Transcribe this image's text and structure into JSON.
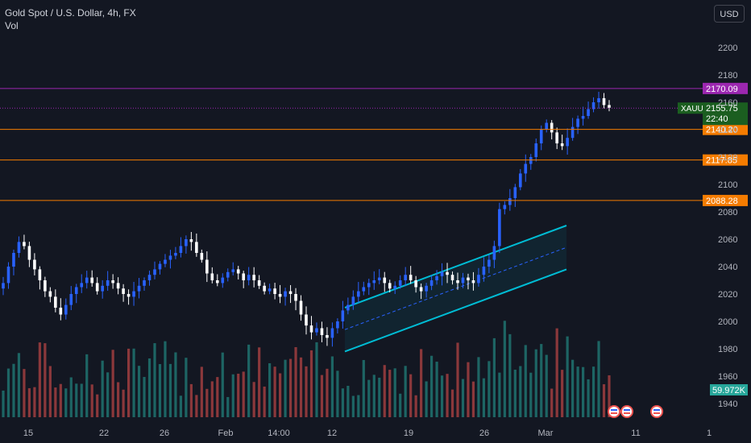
{
  "header": {
    "title": "Gold Spot / U.S. Dollar, 4h, FX",
    "volume_label": "Vol",
    "currency_button": "USD"
  },
  "colors": {
    "background": "#131722",
    "up": "#2962ff",
    "down": "#ffffff",
    "vol_up": "#26a69a",
    "vol_down": "#ef5350",
    "channel": "#00bcd4",
    "resistance_purple": "#9c27b0",
    "level_orange": "#f57c00",
    "price_green": "#1b5e20"
  },
  "chart_data": {
    "type": "candlestick",
    "title": "Gold Spot / U.S. Dollar, 4h, FX",
    "symbol": "XAUUSD",
    "ylim": [
      1935,
      2215
    ],
    "y_ticks": [
      1940,
      1960,
      1980,
      2000,
      2020,
      2040,
      2060,
      2080,
      2100,
      2120,
      2140,
      2160,
      2180,
      2200
    ],
    "x_ticks": [
      "15",
      "22",
      "26",
      "Feb",
      "14:00",
      "12",
      "19",
      "26",
      "Mar",
      "11",
      "1"
    ],
    "horizontal_levels": [
      {
        "value": 2170.09,
        "label": "2170.09",
        "color": "#9c27b0"
      },
      {
        "value": 2155.32,
        "label": "2155.32",
        "color": "#9c27b0"
      },
      {
        "value": 2140.2,
        "label": "2140.20",
        "color": "#f57c00"
      },
      {
        "value": 2117.85,
        "label": "2117.85",
        "color": "#f57c00"
      },
      {
        "value": 2088.28,
        "label": "2088.28",
        "color": "#f57c00"
      }
    ],
    "last_price": {
      "symbol": "XAUUSD",
      "value": "2155.75",
      "countdown": "22:40"
    },
    "volume_last": "59.972K",
    "channel": {
      "upper": [
        {
          "x": "Feb 12",
          "y": 2010
        },
        {
          "x": "Mar 5",
          "y": 2070
        }
      ],
      "lower": [
        {
          "x": "Feb 12",
          "y": 1978
        },
        {
          "x": "Mar 5",
          "y": 2038
        }
      ],
      "mid": [
        {
          "x": "Feb 12",
          "y": 1994
        },
        {
          "x": "Mar 5",
          "y": 2054
        }
      ]
    },
    "price_path": [
      2028,
      2040,
      2050,
      2058,
      2055,
      2045,
      2038,
      2030,
      2022,
      2018,
      2010,
      2005,
      2012,
      2020,
      2025,
      2028,
      2032,
      2028,
      2022,
      2026,
      2030,
      2028,
      2024,
      2020,
      2018,
      2022,
      2026,
      2030,
      2034,
      2038,
      2042,
      2045,
      2048,
      2050,
      2055,
      2060,
      2058,
      2050,
      2045,
      2035,
      2030,
      2028,
      2032,
      2036,
      2038,
      2035,
      2030,
      2034,
      2030,
      2026,
      2022,
      2024,
      2020,
      2018,
      2022,
      2020,
      2015,
      2005,
      1997,
      1992,
      1995,
      1990,
      1988,
      1995,
      2000,
      2008,
      2012,
      2018,
      2022,
      2025,
      2028,
      2030,
      2032,
      2028,
      2024,
      2026,
      2030,
      2034,
      2030,
      2025,
      2022,
      2026,
      2030,
      2033,
      2036,
      2034,
      2030,
      2028,
      2032,
      2030,
      2028,
      2034,
      2040,
      2045,
      2055,
      2082,
      2085,
      2090,
      2098,
      2108,
      2115,
      2120,
      2130,
      2140,
      2145,
      2138,
      2130,
      2128,
      2134,
      2142,
      2148,
      2150,
      2155,
      2160,
      2163,
      2158,
      2156
    ]
  }
}
